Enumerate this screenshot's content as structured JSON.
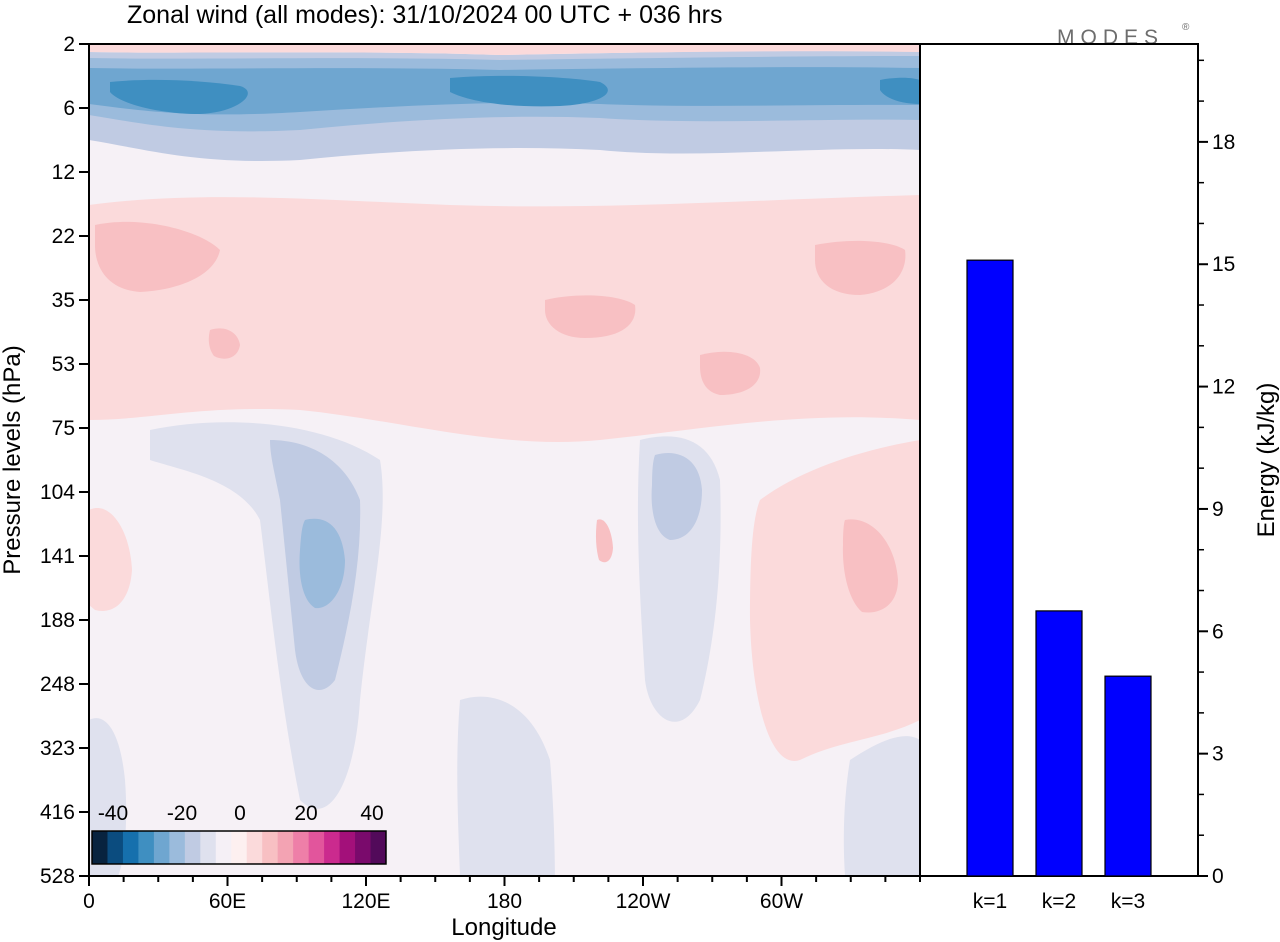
{
  "title": "Zonal wind (all modes):  31/10/2024  00 UTC  + 036 hrs",
  "logo": "MODES",
  "logo_mark": "®",
  "chart_data": [
    {
      "type": "heatmap",
      "title": "Zonal wind (all modes):  31/10/2024  00 UTC  + 036 hrs",
      "xlabel": "Longitude",
      "ylabel": "Pressure levels (hPa)",
      "x_ticks": [
        {
          "lon": 0,
          "label": "0"
        },
        {
          "lon": 60,
          "label": "60E"
        },
        {
          "lon": 120,
          "label": "120E"
        },
        {
          "lon": 180,
          "label": "180"
        },
        {
          "lon": 240,
          "label": "120W"
        },
        {
          "lon": 300,
          "label": "60W"
        }
      ],
      "xlim": [
        0,
        360
      ],
      "y_levels": [
        "2",
        "6",
        "12",
        "22",
        "35",
        "53",
        "75",
        "104",
        "141",
        "188",
        "248",
        "323",
        "416",
        "528"
      ],
      "colorbar": {
        "labels": [
          "-40",
          "-20",
          "0",
          "20",
          "40"
        ],
        "colors": [
          "#08233f",
          "#0b4c7f",
          "#1670ad",
          "#3f8fc1",
          "#6fa6d0",
          "#9bbbdc",
          "#c0cbe3",
          "#dfe1ee",
          "#f5f0f6",
          "#fdf0f0",
          "#fbdadb",
          "#f8c0c3",
          "#f3a3b3",
          "#ee7fa8",
          "#e2559c",
          "#cb2a8e",
          "#a3107a",
          "#7a0a6c",
          "#520a5a"
        ]
      },
      "field_note_omitted": false
    },
    {
      "type": "bar",
      "categories": [
        "k=1",
        "k=2",
        "k=3"
      ],
      "values": [
        15.1,
        6.5,
        4.9
      ],
      "ylabel": "Energy (kJ/kg)",
      "ylim": [
        0,
        20.4
      ],
      "y_ticks": [
        0,
        3,
        6,
        9,
        12,
        15,
        18
      ],
      "bar_color": "#0000ff"
    }
  ]
}
